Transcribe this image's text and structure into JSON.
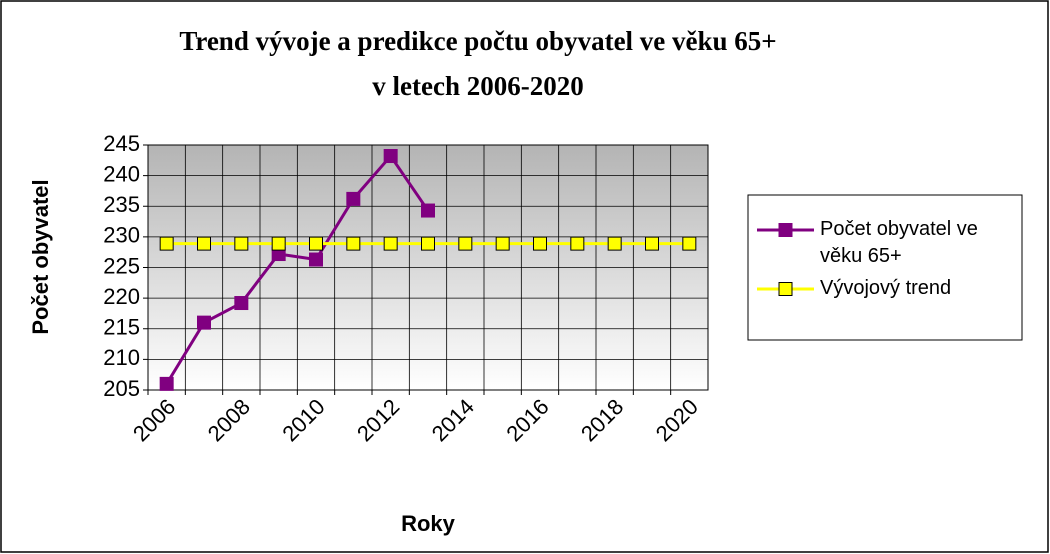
{
  "chart_data": {
    "type": "line",
    "title": [
      "Trend vývoje a predikce počtu obyvatel ve věku 65+",
      "v letech 2006-2020"
    ],
    "x_label": "Roky",
    "y_label": "Počet obyvatel",
    "categories": [
      "2006",
      null,
      "2008",
      null,
      "2010",
      null,
      "2012",
      null,
      "2014",
      null,
      "2016",
      null,
      "2018",
      null,
      "2020"
    ],
    "series": [
      {
        "name": "Počet obyvatel ve věku 65+",
        "color": "#800080",
        "values": [
          206,
          216,
          219.2,
          227.2,
          226.3,
          236.2,
          243.2,
          234.3,
          null,
          null,
          null,
          null,
          null,
          null,
          null
        ]
      },
      {
        "name": "Vývojový trend",
        "color": "#ffff00",
        "values": [
          228.9,
          228.9,
          228.9,
          228.9,
          228.9,
          228.9,
          228.9,
          228.9,
          228.9,
          228.9,
          228.9,
          228.9,
          228.9,
          228.9,
          228.9
        ]
      }
    ],
    "ylim": [
      205,
      245
    ],
    "yticks": [
      205,
      210,
      215,
      220,
      225,
      230,
      235,
      240,
      245
    ],
    "grid": true,
    "legend": "right"
  }
}
